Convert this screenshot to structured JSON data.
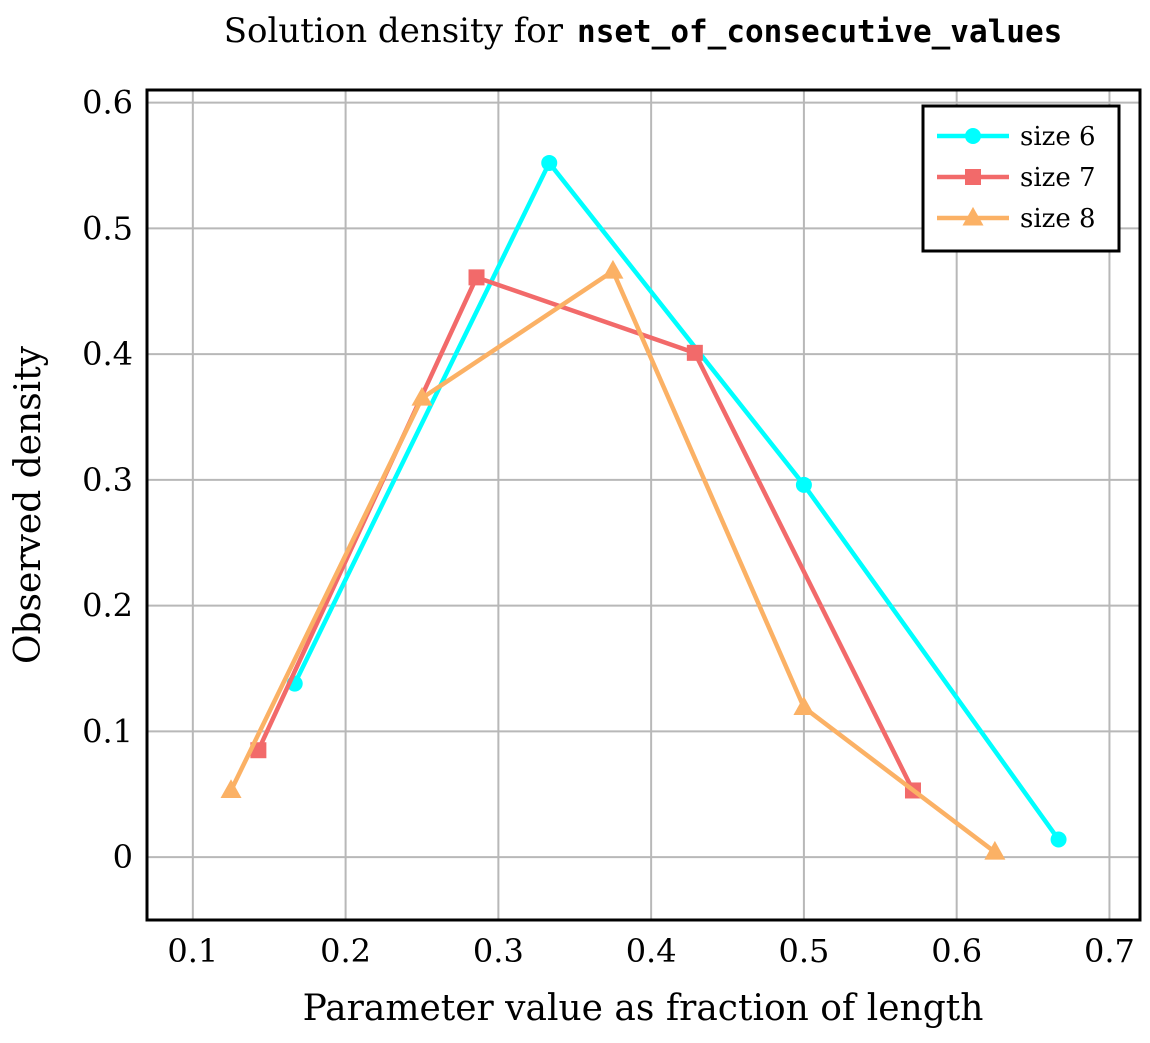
{
  "chart_data": {
    "type": "line",
    "title_prefix": "Solution density for",
    "title_code": "nset_of_consecutive_values",
    "xlabel": "Parameter value as fraction of length",
    "ylabel": "Observed density",
    "xlim": [
      0.07,
      0.72
    ],
    "ylim": [
      -0.05,
      0.61
    ],
    "xticks": [
      0.1,
      0.2,
      0.3,
      0.4,
      0.5,
      0.6,
      0.7
    ],
    "yticks": [
      0,
      0.1,
      0.2,
      0.3,
      0.4,
      0.5,
      0.6
    ],
    "xtick_labels": [
      "0.1",
      "0.2",
      "0.3",
      "0.4",
      "0.5",
      "0.6",
      "0.7"
    ],
    "ytick_labels": [
      "0",
      "0.1",
      "0.2",
      "0.3",
      "0.4",
      "0.5",
      "0.6"
    ],
    "grid": true,
    "legend_position": "top-right",
    "series": [
      {
        "name": "size 6",
        "color": "#00ffff",
        "marker": "circle",
        "x": [
          0.1667,
          0.3333,
          0.5,
          0.6667
        ],
        "y": [
          0.138,
          0.552,
          0.296,
          0.014
        ]
      },
      {
        "name": "size 7",
        "color": "#f26a6a",
        "marker": "square",
        "x": [
          0.1429,
          0.2857,
          0.4286,
          0.5714
        ],
        "y": [
          0.085,
          0.461,
          0.401,
          0.053
        ]
      },
      {
        "name": "size 8",
        "color": "#fbb165",
        "marker": "triangle",
        "x": [
          0.125,
          0.25,
          0.375,
          0.5,
          0.625
        ],
        "y": [
          0.053,
          0.365,
          0.466,
          0.119,
          0.004
        ]
      }
    ]
  }
}
